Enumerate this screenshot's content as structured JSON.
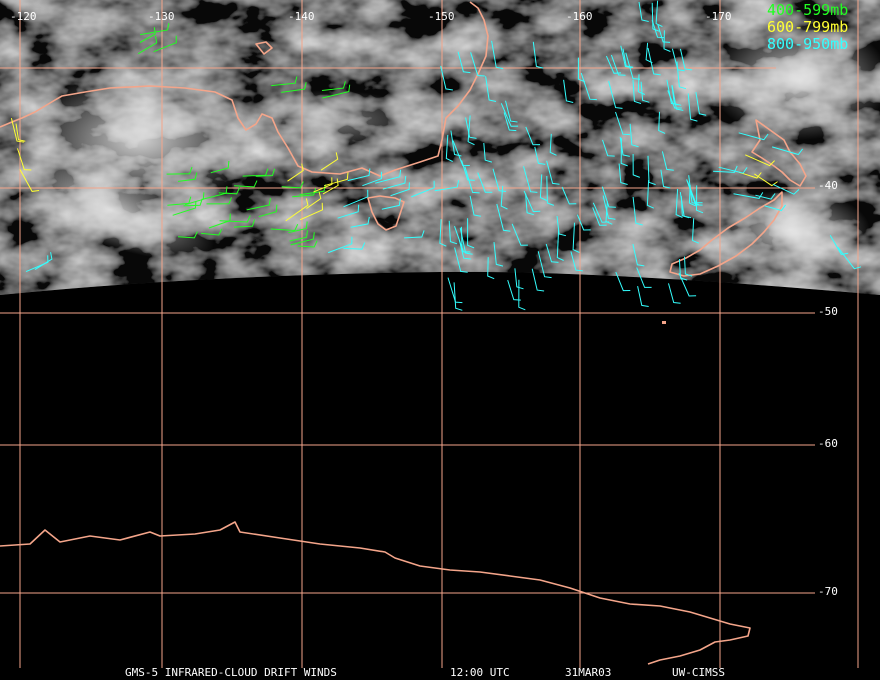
{
  "map": {
    "longitude_labels": [
      "-120",
      "-130",
      "-140",
      "-150",
      "-160",
      "-170"
    ],
    "latitude_labels": [
      "-40",
      "-50",
      "-60",
      "-70"
    ],
    "legend": [
      "400-599mb",
      "600-799mb",
      "800-950mb"
    ],
    "footer": [
      "GMS-5 INFRARED-CLOUD DRIFT WINDS",
      "12:00 UTC",
      "31MAR03",
      "UW-CIMSS"
    ]
  }
}
